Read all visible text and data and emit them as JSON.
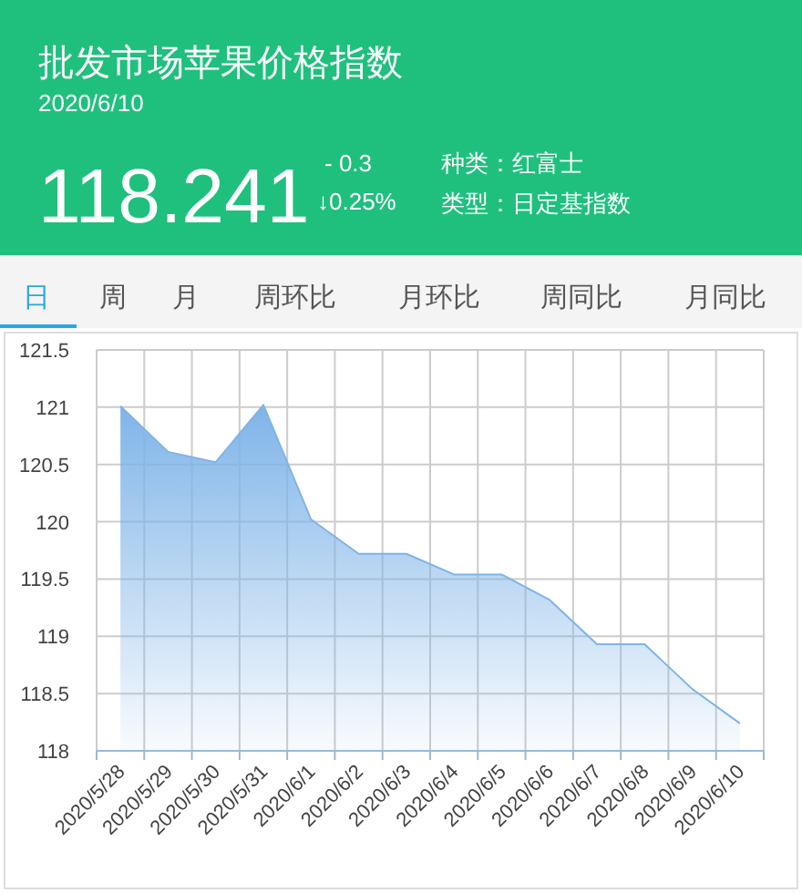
{
  "chart_data": {
    "type": "area",
    "title": "批发市场苹果价格指数",
    "subtitle": "2020/6/10",
    "annotations": [
      "118.241",
      "- 0.3",
      "↓0.25%",
      "种类：红富士",
      "类型：日定基指数",
      "日",
      "周",
      "月",
      "周环比",
      "月环比",
      "周同比",
      "月同比"
    ],
    "categories": [
      "2020/5/28",
      "2020/5/29",
      "2020/5/30",
      "2020/5/31",
      "2020/6/1",
      "2020/6/2",
      "2020/6/3",
      "2020/6/4",
      "2020/6/5",
      "2020/6/6",
      "2020/6/7",
      "2020/6/8",
      "2020/6/9",
      "2020/6/10"
    ],
    "series": [
      {
        "color": "#7fb4e8",
        "values": [
          121.01,
          120.61,
          120.52,
          121.02,
          120.02,
          119.72,
          119.72,
          119.54,
          119.54,
          119.32,
          118.93,
          118.93,
          118.54,
          118.24
        ]
      }
    ],
    "ylim": [
      118,
      121.5
    ],
    "yticks": [
      118,
      118.5,
      119,
      119.5,
      120,
      120.5,
      121,
      121.5
    ],
    "grid": true
  }
}
